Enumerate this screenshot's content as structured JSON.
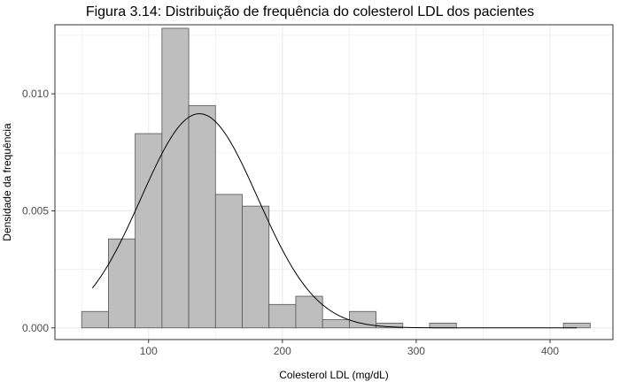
{
  "chart_data": {
    "type": "bar",
    "title": "Figura 3.14: Distribuição de frequência do colesterol LDL dos pacientes",
    "xlabel": "Colesterol LDL (mg/dL)",
    "ylabel": "Densidade da frequência",
    "xlim": [
      30,
      447
    ],
    "ylim": [
      -0.0005,
      0.01295
    ],
    "x_ticks": [
      100,
      200,
      300,
      400
    ],
    "x_tick_labels": [
      "100",
      "200",
      "300",
      "400"
    ],
    "y_ticks": [
      0,
      0.005,
      0.01
    ],
    "y_tick_labels": [
      "0.000",
      "0.005",
      "0.010"
    ],
    "grid": true,
    "bin_width": 20,
    "bins": [
      {
        "start": 50,
        "end": 70,
        "density": 0.0007
      },
      {
        "start": 70,
        "end": 90,
        "density": 0.0038
      },
      {
        "start": 90,
        "end": 110,
        "density": 0.0083
      },
      {
        "start": 110,
        "end": 130,
        "density": 0.0128
      },
      {
        "start": 130,
        "end": 150,
        "density": 0.0095
      },
      {
        "start": 150,
        "end": 170,
        "density": 0.0057
      },
      {
        "start": 170,
        "end": 190,
        "density": 0.0052
      },
      {
        "start": 190,
        "end": 210,
        "density": 0.001
      },
      {
        "start": 210,
        "end": 230,
        "density": 0.00135
      },
      {
        "start": 230,
        "end": 250,
        "density": 0.00035
      },
      {
        "start": 250,
        "end": 270,
        "density": 0.0007
      },
      {
        "start": 270,
        "end": 290,
        "density": 0.0002
      },
      {
        "start": 290,
        "end": 310,
        "density": 0.0
      },
      {
        "start": 310,
        "end": 330,
        "density": 0.0002
      },
      {
        "start": 330,
        "end": 350,
        "density": 0.0
      },
      {
        "start": 350,
        "end": 370,
        "density": 0.0
      },
      {
        "start": 370,
        "end": 390,
        "density": 0.0
      },
      {
        "start": 390,
        "end": 410,
        "density": 0.0
      },
      {
        "start": 410,
        "end": 430,
        "density": 0.0002
      }
    ],
    "normal_curve": {
      "mean": 138,
      "sd": 43.6,
      "x_range": [
        58,
        420
      ]
    },
    "colors": {
      "bar_fill": "#bebebe",
      "bar_stroke": "#555555",
      "curve": "#000000",
      "grid": "#ebebeb",
      "panel_border": "#333333"
    }
  }
}
